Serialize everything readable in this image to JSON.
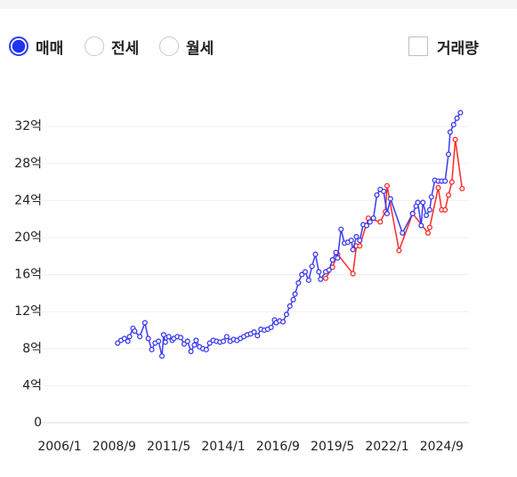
{
  "controls": {
    "options": [
      "매매",
      "전세",
      "월세"
    ],
    "selected": 0,
    "checkbox": "거래량"
  },
  "chart_data": {
    "type": "line",
    "xlim": [
      "2006/1",
      "2026/1"
    ],
    "xticks": [
      "2006/1",
      "2008/9",
      "2011/5",
      "2014/1",
      "2016/9",
      "2019/5",
      "2022/1",
      "2024/9"
    ],
    "ylim": [
      0,
      34
    ],
    "yticks": [
      {
        "value": 0,
        "label": "0"
      },
      {
        "value": 4,
        "label": "4억"
      },
      {
        "value": 8,
        "label": "8억"
      },
      {
        "value": 12,
        "label": "12억"
      },
      {
        "value": 16,
        "label": "16억"
      },
      {
        "value": 20,
        "label": "20억"
      },
      {
        "value": 24,
        "label": "24억"
      },
      {
        "value": 28,
        "label": "28억"
      },
      {
        "value": 32,
        "label": "32억"
      }
    ],
    "grid": true,
    "series": [
      {
        "color": "#ff2a2a",
        "x": [
          "2019/1",
          "2019/5",
          "2019/8",
          "2020/5",
          "2020/7",
          "2020/9",
          "2021/2",
          "2021/9",
          "2021/12",
          "2022/1",
          "2022/8",
          "2023/4",
          "2024/1",
          "2024/2",
          "2024/7",
          "2024/9",
          "2024/11",
          "2025/1",
          "2025/3",
          "2025/5",
          "2025/9"
        ],
        "values": [
          15.6,
          16.8,
          18.2,
          16.1,
          19.1,
          19.1,
          22.1,
          21.7,
          22.8,
          25.6,
          18.6,
          22.6,
          20.5,
          21.1,
          25.4,
          23.0,
          23.0,
          24.6,
          26.0,
          30.6,
          25.3
        ]
      },
      {
        "color": "#3b3bf0",
        "x": [
          "2008/11",
          "2009/1",
          "2009/3",
          "2009/5",
          "2009/6",
          "2009/8",
          "2009/9",
          "2009/12",
          "2010/3",
          "2010/5",
          "2010/7",
          "2010/9",
          "2010/11",
          "2011/1",
          "2011/2",
          "2011/3",
          "2011/5",
          "2011/7",
          "2011/8",
          "2011/10",
          "2011/12",
          "2012/2",
          "2012/4",
          "2012/6",
          "2012/8",
          "2012/9",
          "2012/11",
          "2013/1",
          "2013/3",
          "2013/5",
          "2013/7",
          "2013/9",
          "2013/11",
          "2014/1",
          "2014/3",
          "2014/5",
          "2014/7",
          "2014/9",
          "2014/11",
          "2015/1",
          "2015/3",
          "2015/5",
          "2015/7",
          "2015/9",
          "2015/11",
          "2016/1",
          "2016/3",
          "2016/5",
          "2016/7",
          "2016/8",
          "2016/10",
          "2016/12",
          "2017/2",
          "2017/4",
          "2017/6",
          "2017/7",
          "2017/9",
          "2017/11",
          "2018/1",
          "2018/3",
          "2018/5",
          "2018/7",
          "2018/9",
          "2018/10",
          "2019/1",
          "2019/3",
          "2019/5",
          "2019/7",
          "2019/8",
          "2019/10",
          "2019/12",
          "2020/2",
          "2020/4",
          "2020/5",
          "2020/7",
          "2020/9",
          "2020/11",
          "2021/1",
          "2021/3",
          "2021/5",
          "2021/7",
          "2021/9",
          "2021/11",
          "2022/1",
          "2022/3",
          "2022/10",
          "2023/4",
          "2023/6",
          "2023/7",
          "2023/9",
          "2023/10",
          "2023/12",
          "2024/2",
          "2024/3",
          "2024/5",
          "2024/7",
          "2024/9",
          "2024/11",
          "2025/1",
          "2025/2",
          "2025/4",
          "2025/6",
          "2025/8"
        ],
        "values": [
          8.6,
          8.9,
          9.1,
          8.8,
          9.3,
          10.2,
          9.9,
          9.3,
          10.8,
          9.1,
          7.9,
          8.6,
          8.8,
          7.2,
          9.5,
          8.7,
          9.3,
          8.9,
          9.1,
          9.3,
          9.2,
          8.5,
          8.8,
          7.7,
          8.4,
          8.9,
          8.2,
          8.0,
          7.9,
          8.6,
          8.9,
          8.8,
          8.7,
          8.8,
          9.3,
          8.8,
          9.0,
          8.9,
          9.1,
          9.3,
          9.5,
          9.6,
          9.8,
          9.4,
          10.1,
          10.0,
          10.1,
          10.3,
          11.1,
          10.8,
          11.0,
          10.9,
          11.7,
          12.6,
          13.3,
          13.9,
          15.1,
          16.0,
          16.3,
          15.4,
          16.9,
          18.2,
          16.3,
          15.5,
          16.3,
          16.5,
          17.6,
          18.4,
          17.8,
          20.9,
          19.4,
          19.5,
          19.7,
          18.7,
          20.1,
          19.7,
          21.4,
          21.3,
          21.7,
          22.1,
          24.6,
          25.2,
          25.0,
          22.6,
          24.2,
          20.5,
          22.6,
          23.4,
          23.8,
          21.3,
          23.8,
          22.4,
          23.0,
          24.4,
          26.2,
          26.1,
          26.1,
          26.1,
          29.0,
          31.4,
          32.2,
          32.9,
          33.5
        ]
      }
    ]
  }
}
